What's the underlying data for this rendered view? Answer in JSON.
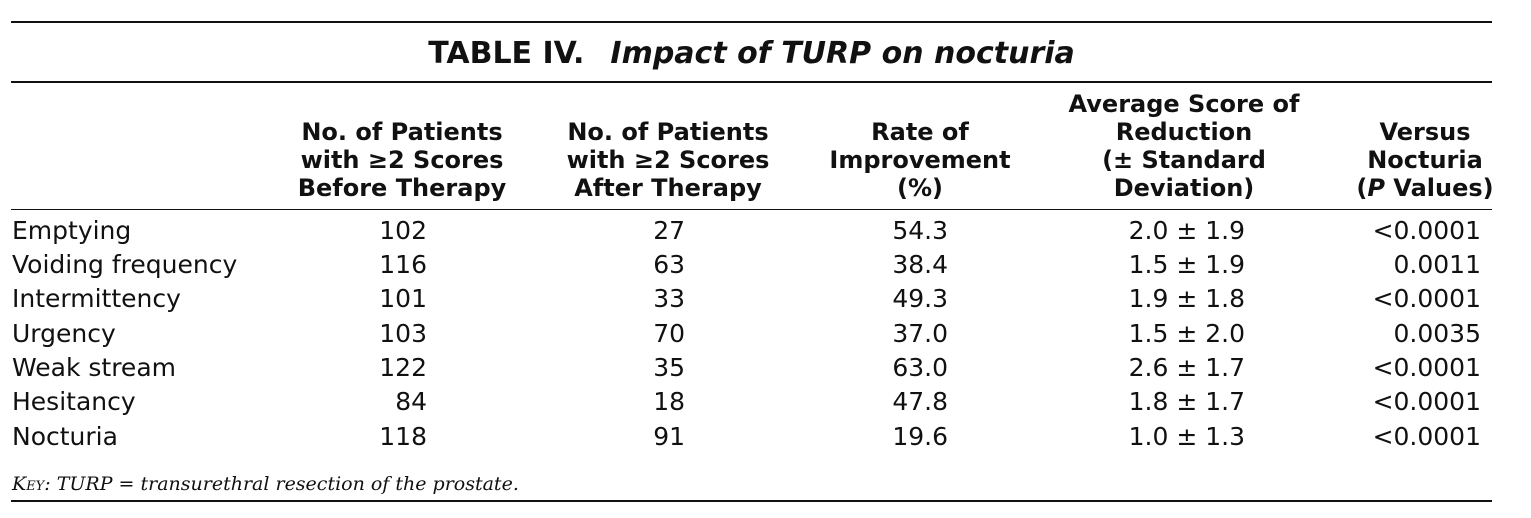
{
  "table": {
    "title_label": "TABLE IV.",
    "title_caption": "Impact of TURP on nocturia",
    "columns": [
      "No. of Patients\nwith ≥2 Scores\nBefore Therapy",
      "No. of Patients\nwith ≥2 Scores\nAfter Therapy",
      "Rate of\nImprovement\n(%)",
      "Average Score of\nReduction\n(± Standard\nDeviation)",
      "Versus\nNocturia\n("
    ],
    "last_col_italic": "P",
    "last_col_suffix": " Values)",
    "rows": [
      {
        "label": "Emptying",
        "before": "102",
        "after": "27",
        "rate": "54.3",
        "reduction": "2.0 ± 1.9",
        "p": "<0.0001"
      },
      {
        "label": "Voiding frequency",
        "before": "116",
        "after": "63",
        "rate": "38.4",
        "reduction": "1.5 ± 1.9",
        "p": "0.0011"
      },
      {
        "label": "Intermittency",
        "before": "101",
        "after": "33",
        "rate": "49.3",
        "reduction": "1.9 ± 1.8",
        "p": "<0.0001"
      },
      {
        "label": "Urgency",
        "before": "103",
        "after": "70",
        "rate": "37.0",
        "reduction": "1.5 ± 2.0",
        "p": "0.0035"
      },
      {
        "label": "Weak stream",
        "before": "122",
        "after": "35",
        "rate": "63.0",
        "reduction": "2.6 ± 1.7",
        "p": "<0.0001"
      },
      {
        "label": "Hesitancy",
        "before": "84",
        "after": "18",
        "rate": "47.8",
        "reduction": "1.8 ± 1.7",
        "p": "<0.0001"
      },
      {
        "label": "Nocturia",
        "before": "118",
        "after": "91",
        "rate": "19.6",
        "reduction": "1.0 ± 1.3",
        "p": "<0.0001"
      }
    ],
    "footnote_key": "Key:",
    "footnote_text": " TURP = transurethral resection of the prostate."
  }
}
